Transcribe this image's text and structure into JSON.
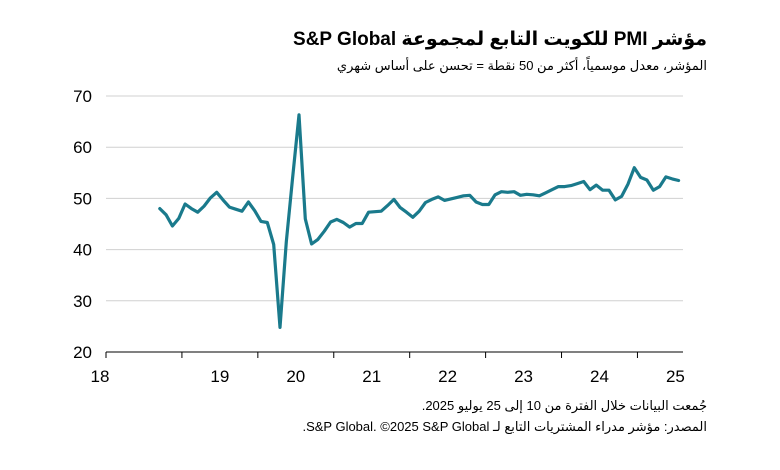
{
  "chart_data": {
    "type": "line",
    "title": "مؤشر PMI للكويت التابع لمجموعة S&P Global",
    "subtitle": "المؤشر، معدل موسمياً، أكثر من 50 نقطة = تحسن على أساس شهري",
    "xlabel": "",
    "ylabel": "",
    "ylim": [
      20,
      70
    ],
    "xlim": [
      2018,
      2025.6
    ],
    "yticks": [
      "20",
      "30",
      "40",
      "50",
      "60",
      "70"
    ],
    "xticks": [
      "18",
      "19",
      "20",
      "21",
      "22",
      "23",
      "24",
      "25"
    ],
    "grid": "horizontal",
    "line_color": "#1a7a8c",
    "series": [
      {
        "x": [
          "2018-09",
          "2018-10",
          "2018-11",
          "2018-12",
          "2019-01",
          "2019-02",
          "2019-03",
          "2019-04",
          "2019-05",
          "2019-06",
          "2019-07",
          "2019-08",
          "2019-09",
          "2019-10",
          "2019-11",
          "2019-12",
          "2020-01",
          "2020-02",
          "2020-03",
          "2020-04",
          "2020-05",
          "2020-06",
          "2020-07",
          "2020-08",
          "2020-09",
          "2020-10",
          "2020-11",
          "2020-12",
          "2021-01",
          "2021-02",
          "2021-03",
          "2021-04",
          "2021-05",
          "2021-06",
          "2021-07",
          "2021-08",
          "2021-09",
          "2021-10",
          "2021-11",
          "2021-12",
          "2022-01",
          "2022-02",
          "2022-03",
          "2022-04",
          "2022-05",
          "2022-06",
          "2022-07",
          "2022-08",
          "2022-09",
          "2022-10",
          "2022-11",
          "2022-12",
          "2023-01",
          "2023-02",
          "2023-03",
          "2023-04",
          "2023-05",
          "2023-06",
          "2023-07",
          "2023-08",
          "2023-09",
          "2023-10",
          "2023-11",
          "2023-12",
          "2024-01",
          "2024-02",
          "2024-03",
          "2024-04",
          "2024-05",
          "2024-06",
          "2024-07",
          "2024-08",
          "2024-09",
          "2024-10",
          "2024-11",
          "2024-12",
          "2025-01",
          "2025-02",
          "2025-03",
          "2025-04",
          "2025-05",
          "2025-06",
          "2025-07"
        ],
        "values": [
          48.0,
          46.8,
          44.6,
          46.1,
          48.9,
          48.0,
          47.3,
          48.5,
          50.1,
          51.2,
          49.7,
          48.3,
          47.9,
          47.5,
          49.3,
          47.6,
          45.5,
          45.3,
          41.0,
          24.8,
          41.5,
          54.0,
          66.3,
          46.0,
          41.1,
          42.0,
          43.6,
          45.4,
          45.9,
          45.3,
          44.4,
          45.1,
          45.1,
          47.3,
          47.4,
          47.5,
          48.6,
          49.8,
          48.2,
          47.3,
          46.3,
          47.5,
          49.2,
          49.8,
          50.3,
          49.6,
          49.9,
          50.2,
          50.5,
          50.6,
          49.3,
          48.8,
          48.8,
          50.7,
          51.3,
          51.2,
          51.3,
          50.6,
          50.8,
          50.7,
          50.5,
          51.1,
          51.7,
          52.3,
          52.3,
          52.5,
          52.9,
          53.3,
          51.7,
          52.6,
          51.6,
          51.6,
          49.7,
          50.4,
          52.8,
          56.0,
          54.1,
          53.6,
          51.6,
          52.3,
          54.2,
          53.8,
          53.5
        ]
      }
    ]
  },
  "footnotes": {
    "line1": "جُمعت البيانات خلال الفترة من 10 إلى 25 يوليو 2025.",
    "line2": "المصدر: مؤشر مدراء المشتريات التابع لـ S&P Global. ©2025 S&P Global."
  }
}
